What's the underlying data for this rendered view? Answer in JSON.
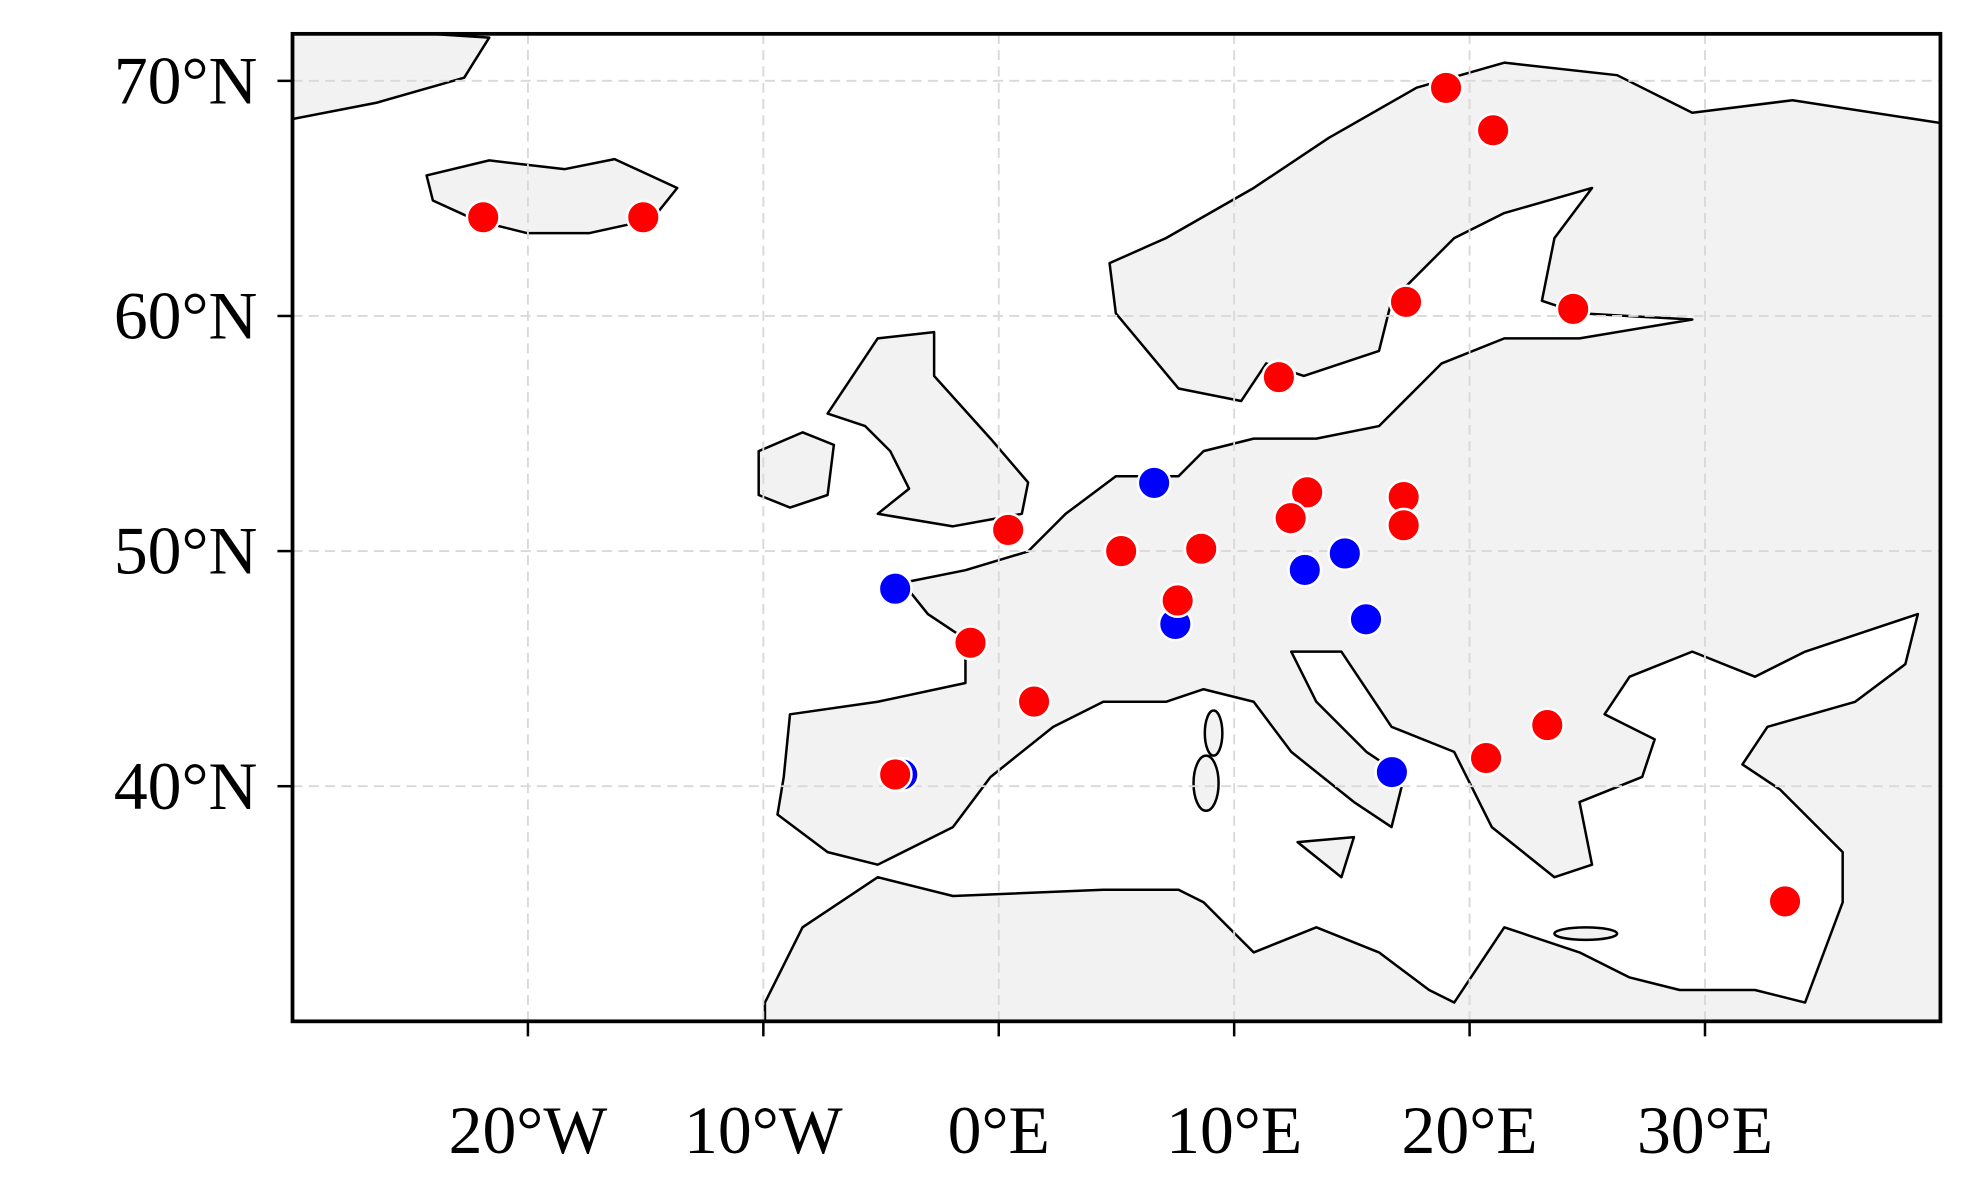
{
  "chart_data": {
    "type": "scatter",
    "xlim": [
      -30,
      40
    ],
    "ylim": [
      30,
      72
    ],
    "xticks": [
      {
        "value": -20,
        "label": "20°W"
      },
      {
        "value": -10,
        "label": "10°W"
      },
      {
        "value": 0,
        "label": "0°E"
      },
      {
        "value": 10,
        "label": "10°E"
      },
      {
        "value": 20,
        "label": "20°E"
      },
      {
        "value": 30,
        "label": "30°E"
      }
    ],
    "yticks": [
      {
        "value": 40,
        "label": "40°N"
      },
      {
        "value": 50,
        "label": "50°N"
      },
      {
        "value": 60,
        "label": "60°N"
      },
      {
        "value": 70,
        "label": "70°N"
      }
    ],
    "grid": true,
    "series": [
      {
        "color": "#0000ff",
        "x": [
          6.6,
          -4.4,
          7.5,
          13.0,
          14.7,
          15.6,
          16.7,
          -4.1
        ],
        "values": [
          52.9,
          48.4,
          46.9,
          49.2,
          49.9,
          47.1,
          40.6,
          40.5
        ]
      },
      {
        "color": "#ff0000",
        "x": [
          -21.9,
          -15.1,
          19.0,
          21.0,
          17.3,
          24.4,
          11.9,
          0.4,
          5.2,
          8.6,
          13.1,
          12.4,
          17.2,
          17.2,
          7.6,
          -1.2,
          1.5,
          -4.4,
          20.7,
          23.3,
          33.4
        ],
        "values": [
          64.2,
          64.2,
          69.7,
          67.9,
          60.6,
          60.3,
          57.4,
          50.9,
          50.0,
          50.1,
          52.5,
          51.4,
          52.3,
          51.1,
          47.9,
          46.1,
          43.6,
          40.5,
          41.2,
          42.6,
          35.1
        ]
      }
    ]
  }
}
